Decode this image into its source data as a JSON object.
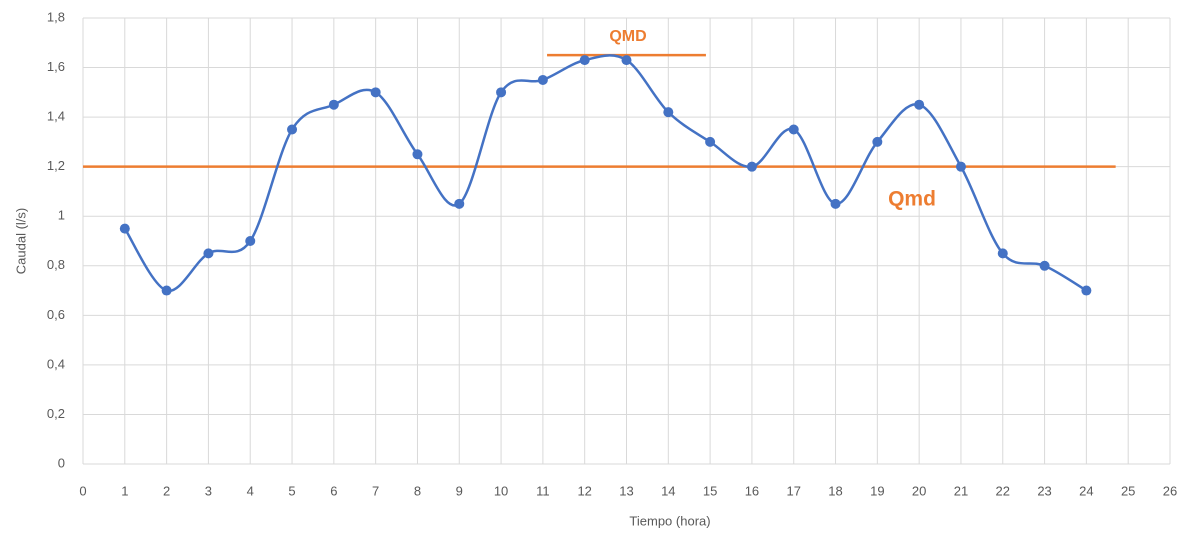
{
  "chart_data": {
    "type": "line",
    "x_label": "Tiempo (hora)",
    "y_label": "Caudal (l/s)",
    "x": [
      1,
      2,
      3,
      4,
      5,
      6,
      7,
      8,
      9,
      10,
      11,
      12,
      13,
      14,
      15,
      16,
      17,
      18,
      19,
      20,
      21,
      22,
      23,
      24
    ],
    "series": [
      {
        "color": "#4472c4",
        "smooth": true,
        "values": [
          0.95,
          0.7,
          0.85,
          0.9,
          1.35,
          1.45,
          1.5,
          1.25,
          1.05,
          1.5,
          1.55,
          1.63,
          1.63,
          1.42,
          1.3,
          1.2,
          1.35,
          1.05,
          1.3,
          1.45,
          1.2,
          0.85,
          0.8,
          0.7
        ]
      }
    ],
    "reference_lines": [
      {
        "label": "QMD",
        "value": 1.65,
        "x": [
          11.1,
          14.9
        ],
        "color": "#ed7d31"
      },
      {
        "label": "Qmd",
        "value": 1.2,
        "x": [
          0,
          24.7
        ],
        "color": "#ed7d31"
      }
    ],
    "xlim": [
      0,
      26
    ],
    "xticks": [
      0,
      1,
      2,
      3,
      4,
      5,
      6,
      7,
      8,
      9,
      10,
      11,
      12,
      13,
      14,
      15,
      16,
      17,
      18,
      19,
      20,
      21,
      22,
      23,
      24,
      25,
      26
    ],
    "ylim": [
      0,
      1.8
    ],
    "yticks": [
      0,
      {
        "value": 0.2,
        "label": "0,2"
      },
      {
        "value": 0.4,
        "label": "0,4"
      },
      {
        "value": 0.6,
        "label": "0,6"
      },
      {
        "value": 0.8,
        "label": "0,8"
      },
      1,
      {
        "value": 1.2,
        "label": "1,2"
      },
      {
        "value": 1.4,
        "label": "1,4"
      },
      {
        "value": 1.6,
        "label": "1,6"
      },
      {
        "value": 1.8,
        "label": "1,8"
      }
    ],
    "grid": true
  }
}
